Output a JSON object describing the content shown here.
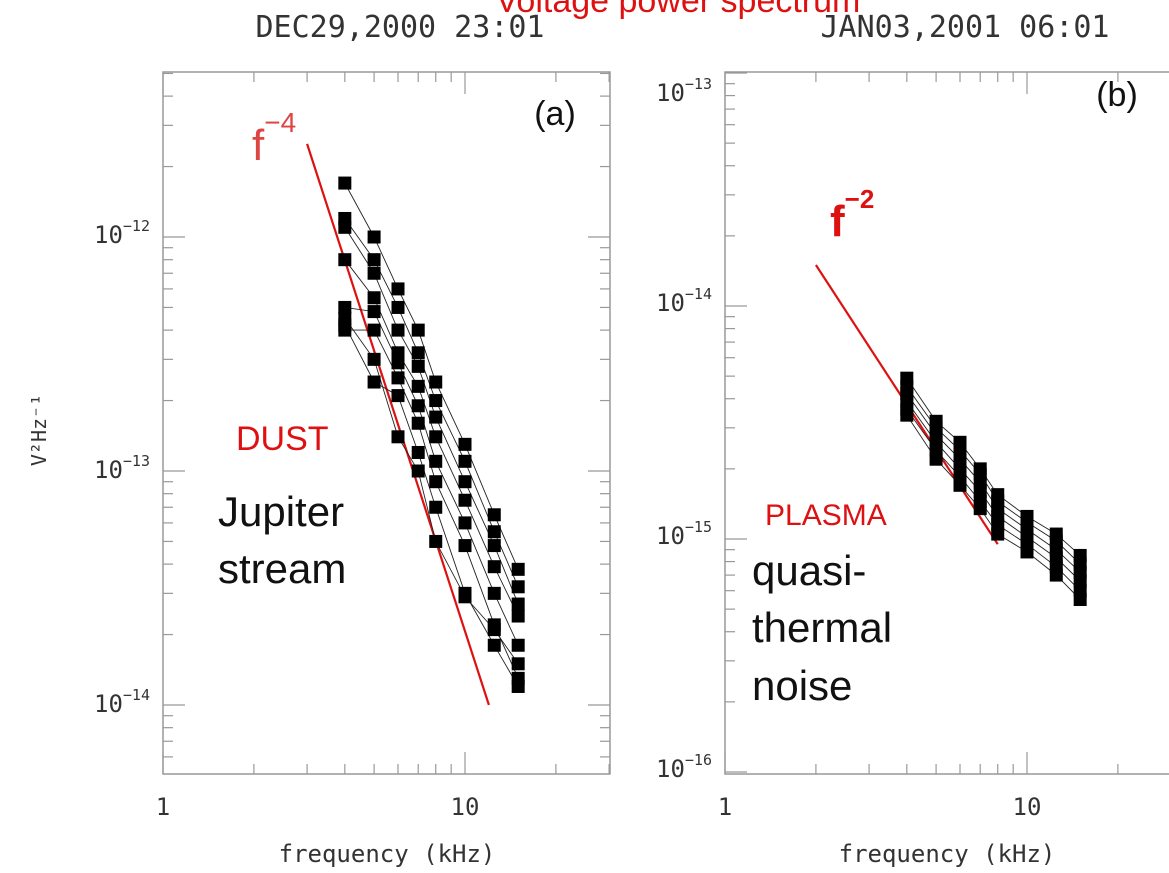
{
  "suptitle": "Voltage power spectrum",
  "chart_data": [
    {
      "type": "scatter",
      "title": "DEC29,2000  23:01",
      "panel_label": "(a)",
      "xlabel": "frequency (kHz)",
      "ylabel": "V²Hz⁻¹",
      "x_scale": "log",
      "y_scale": "log",
      "xlim": [
        1,
        25
      ],
      "ylim": [
        5e-15,
        6e-12
      ],
      "x_ticks": [
        {
          "value": 1,
          "label": "1"
        },
        {
          "value": 10,
          "label": "10"
        }
      ],
      "y_ticks": [
        {
          "value": 1e-14,
          "base": "10",
          "exp": "−14"
        },
        {
          "value": 1e-13,
          "base": "10",
          "exp": "−13"
        },
        {
          "value": 1e-12,
          "base": "10",
          "exp": "−12"
        }
      ],
      "x": [
        4,
        5,
        6,
        7,
        8,
        10,
        12.5,
        15
      ],
      "series": [
        {
          "values": [
            1.7e-12,
            1e-12,
            6e-13,
            4e-13,
            2.4e-13,
            1.3e-13,
            6.5e-14,
            3.8e-14
          ]
        },
        {
          "values": [
            1.2e-12,
            8e-13,
            5e-13,
            3.2e-13,
            2e-13,
            1.1e-13,
            5.5e-14,
            3.2e-14
          ]
        },
        {
          "values": [
            1.1e-12,
            7e-13,
            4e-13,
            2.8e-13,
            1.7e-13,
            9e-14,
            4.8e-14,
            2.7e-14
          ]
        },
        {
          "values": [
            8e-13,
            5.5e-13,
            3.2e-13,
            2.3e-13,
            1.4e-13,
            7.5e-14,
            3.9e-14,
            2.4e-14
          ]
        },
        {
          "values": [
            5e-13,
            4.8e-13,
            2.9e-13,
            1.9e-13,
            1.1e-13,
            6e-14,
            3e-14,
            1.8e-14
          ]
        },
        {
          "values": [
            4e-13,
            4e-13,
            2.5e-13,
            1.6e-13,
            9e-14,
            4.8e-14,
            2.2e-14,
            1.3e-14
          ]
        },
        {
          "values": [
            4.2e-13,
            2.4e-13,
            2.1e-13,
            1.2e-13,
            7e-14,
            3e-14,
            1.8e-14,
            1.2e-14
          ]
        },
        {
          "values": [
            4.5e-13,
            3e-13,
            1.4e-13,
            1e-13,
            5e-14,
            2.9e-14,
            2.1e-14,
            1.5e-14
          ]
        }
      ],
      "fit_line": {
        "label_base": "f",
        "label_exp": "−4",
        "x": [
          3,
          12
        ],
        "y": [
          2.5e-12,
          1e-14
        ]
      },
      "annotations": {
        "region_label": "DUST",
        "source_line1": "Jupiter",
        "source_line2": "stream"
      }
    },
    {
      "type": "scatter",
      "title": "JAN03,2001  06:01",
      "panel_label": "(b)",
      "xlabel": "frequency (kHz)",
      "ylabel": "",
      "x_scale": "log",
      "y_scale": "log",
      "xlim": [
        1,
        25
      ],
      "ylim": [
        1e-16,
        1e-13
      ],
      "x_ticks": [
        {
          "value": 1,
          "label": "1"
        },
        {
          "value": 10,
          "label": "10"
        }
      ],
      "y_ticks": [
        {
          "value": 1e-16,
          "base": "10",
          "exp": "−16"
        },
        {
          "value": 1e-15,
          "base": "10",
          "exp": "−15"
        },
        {
          "value": 1e-14,
          "base": "10",
          "exp": "−14"
        },
        {
          "value": 1e-13,
          "base": "10",
          "exp": "−13"
        }
      ],
      "x": [
        4,
        5,
        6,
        7,
        8,
        10,
        12.5,
        15
      ],
      "series": [
        {
          "values": [
            4.9e-15,
            3.2e-15,
            2.6e-15,
            2e-15,
            1.55e-15,
            1.25e-15,
            1.05e-15,
            8.5e-16
          ]
        },
        {
          "values": [
            4.5e-15,
            3e-15,
            2.4e-15,
            1.9e-15,
            1.45e-15,
            1.18e-15,
            9.8e-16,
            7.8e-16
          ]
        },
        {
          "values": [
            4.2e-15,
            2.8e-15,
            2.2e-15,
            1.75e-15,
            1.35e-15,
            1.1e-15,
            9e-16,
            7.2e-16
          ]
        },
        {
          "values": [
            3.9e-15,
            2.6e-15,
            2e-15,
            1.6e-15,
            1.25e-15,
            1.02e-15,
            8.3e-16,
            6.6e-16
          ]
        },
        {
          "values": [
            3.6e-15,
            2.4e-15,
            1.85e-15,
            1.45e-15,
            1.15e-15,
            9.5e-16,
            7.6e-16,
            6e-16
          ]
        },
        {
          "values": [
            3.4e-15,
            2.2e-15,
            1.7e-15,
            1.35e-15,
            1.05e-15,
            8.8e-16,
            7e-16,
            5.5e-16
          ]
        }
      ],
      "fit_line": {
        "label_base": "f",
        "label_exp": "−2",
        "x": [
          2,
          8
        ],
        "y": [
          1.5e-14,
          9.5e-16
        ]
      },
      "annotations": {
        "region_label": "PLASMA",
        "source_line1": "quasi-",
        "source_line2": "thermal",
        "source_line3": "noise"
      }
    }
  ]
}
